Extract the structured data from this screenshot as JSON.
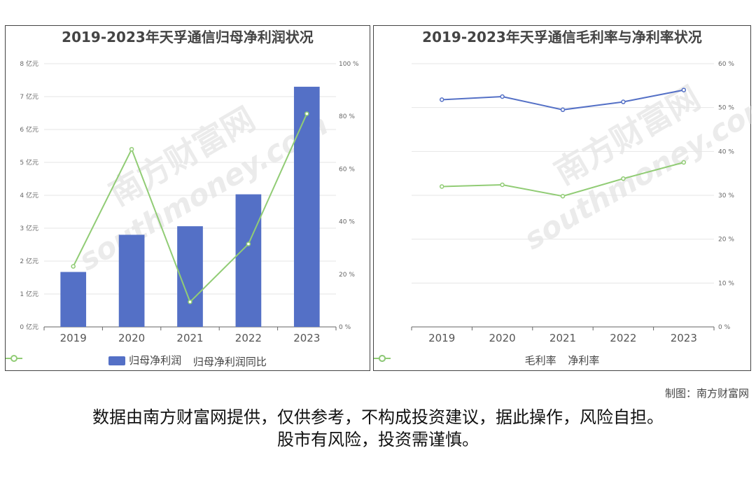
{
  "chart_data": [
    {
      "type": "bar",
      "title": "2019-2023年天孚通信归母净利润状况",
      "categories": [
        "2019",
        "2020",
        "2021",
        "2022",
        "2023"
      ],
      "series": [
        {
          "name": "归母净利润",
          "type": "bar",
          "axis": "left",
          "values": [
            1.67,
            2.8,
            3.06,
            4.03,
            7.3
          ],
          "color": "#5470c6"
        },
        {
          "name": "归母净利润同比",
          "type": "line",
          "axis": "right",
          "values": [
            23,
            67.5,
            9.5,
            31.5,
            81
          ],
          "color": "#91cc75"
        }
      ],
      "y_left": {
        "min": 0,
        "max": 8,
        "ticks": [
          "0 亿元",
          "1 亿元",
          "2 亿元",
          "3 亿元",
          "4 亿元",
          "5 亿元",
          "6 亿元",
          "7 亿元",
          "8 亿元"
        ]
      },
      "y_right": {
        "min": 0,
        "max": 100,
        "ticks": [
          "0 %",
          "20 %",
          "40 %",
          "60 %",
          "80 %",
          "100 %"
        ]
      },
      "grid": true,
      "legend": "bottom"
    },
    {
      "type": "line",
      "title": "2019-2023年天孚通信毛利率与净利率状况",
      "categories": [
        "2019",
        "2020",
        "2021",
        "2022",
        "2023"
      ],
      "series": [
        {
          "name": "毛利率",
          "values": [
            51.8,
            52.5,
            49.5,
            51.3,
            54.0
          ],
          "color": "#5470c6"
        },
        {
          "name": "净利率",
          "values": [
            32.0,
            32.4,
            29.8,
            33.8,
            37.5
          ],
          "color": "#91cc75"
        }
      ],
      "y_right": {
        "min": 0,
        "max": 60,
        "ticks": [
          "0 %",
          "10 %",
          "20 %",
          "30 %",
          "40 %",
          "50 %",
          "60 %"
        ]
      },
      "grid": true,
      "legend": "bottom"
    }
  ],
  "credit": "制图：南方财富网",
  "disclaimer_line1": "数据由南方财富网提供，仅供参考，不构成投资建议，据此操作，风险自担。",
  "disclaimer_line2": "股市有风险，投资需谨慎。",
  "watermark_text": "南方财富网",
  "watermark_url": "southmoney.com"
}
